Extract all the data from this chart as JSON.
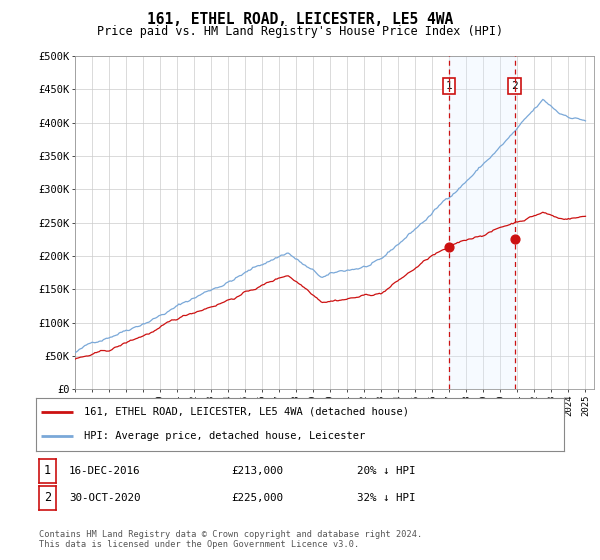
{
  "title": "161, ETHEL ROAD, LEICESTER, LE5 4WA",
  "subtitle": "Price paid vs. HM Land Registry's House Price Index (HPI)",
  "ylabel_ticks": [
    "£0",
    "£50K",
    "£100K",
    "£150K",
    "£200K",
    "£250K",
    "£300K",
    "£350K",
    "£400K",
    "£450K",
    "£500K"
  ],
  "ylim": [
    0,
    500000
  ],
  "xlim_start": 1995.0,
  "xlim_end": 2025.5,
  "hpi_color": "#7aa8d8",
  "price_color": "#cc1111",
  "vline_color": "#cc1111",
  "shade_color": "#ddeeff",
  "sale1_year": 2016.96,
  "sale2_year": 2020.83,
  "sale1_price": 213000,
  "sale2_price": 225000,
  "legend_line1": "161, ETHEL ROAD, LEICESTER, LE5 4WA (detached house)",
  "legend_line2": "HPI: Average price, detached house, Leicester",
  "annotation1_label": "1",
  "annotation2_label": "2",
  "table_row1": [
    "1",
    "16-DEC-2016",
    "£213,000",
    "20% ↓ HPI"
  ],
  "table_row2": [
    "2",
    "30-OCT-2020",
    "£225,000",
    "32% ↓ HPI"
  ],
  "footer": "Contains HM Land Registry data © Crown copyright and database right 2024.\nThis data is licensed under the Open Government Licence v3.0.",
  "background_color": "#ffffff",
  "grid_color": "#cccccc"
}
